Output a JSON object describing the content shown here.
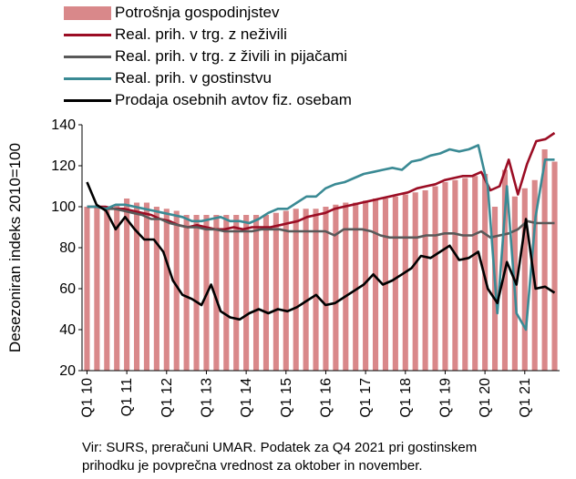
{
  "chart_data": {
    "type": "bar",
    "ylabel": "Desezoniran indeks 2010=100",
    "ylim": [
      20,
      140
    ],
    "yticks": [
      20,
      40,
      60,
      80,
      100,
      120,
      140
    ],
    "xticks": [
      "Q1 10",
      "Q1 11",
      "Q1 12",
      "Q1 13",
      "Q1 14",
      "Q1 15",
      "Q1 16",
      "Q1 17",
      "Q1 18",
      "Q1 19",
      "Q1 20",
      "Q1 21"
    ],
    "legend_position": "top-left",
    "grid": false,
    "series": [
      {
        "name": "Potrošnja gospodinjstev",
        "kind": "bar",
        "color": "#d9888a",
        "values": [
          100,
          100,
          100,
          101,
          104,
          102,
          102,
          100,
          99,
          98,
          96,
          96,
          96,
          96,
          96,
          96,
          96,
          96,
          96,
          97,
          98,
          99,
          99,
          99,
          100,
          101,
          102,
          102,
          103,
          104,
          104,
          105,
          106,
          107,
          108,
          110,
          112,
          113,
          114,
          115,
          116,
          100,
          118,
          105,
          109,
          113,
          128,
          122
        ]
      },
      {
        "name": "Real. prih. v trg. z neživili",
        "kind": "line",
        "color": "#9b0d24",
        "values": [
          100,
          100,
          100,
          99,
          99,
          98,
          97,
          96,
          94,
          93,
          91,
          90,
          91,
          90,
          89,
          89,
          90,
          89,
          90,
          90,
          90,
          91,
          92,
          93,
          95,
          96,
          97,
          99,
          100,
          101,
          102,
          103,
          104,
          105,
          106,
          107,
          109,
          110,
          111,
          113,
          114,
          115,
          115,
          117,
          108,
          110,
          123,
          106,
          121,
          132,
          133,
          136
        ]
      },
      {
        "name": "Real. prih. v trg. z živili in pijačami",
        "kind": "line",
        "color": "#595959",
        "values": [
          100,
          100,
          99,
          99,
          98,
          97,
          96,
          94,
          94,
          92,
          91,
          90,
          90,
          89,
          89,
          88,
          88,
          88,
          88,
          89,
          89,
          89,
          88,
          88,
          88,
          88,
          88,
          86,
          89,
          89,
          89,
          88,
          86,
          85,
          85,
          85,
          85,
          86,
          86,
          87,
          87,
          86,
          86,
          88,
          85,
          86,
          87,
          89,
          93,
          92,
          92,
          92
        ]
      },
      {
        "name": "Real. prih. v gostinstvu",
        "kind": "line",
        "color": "#3a8a94",
        "values": [
          100,
          100,
          99,
          101,
          101,
          100,
          99,
          98,
          97,
          96,
          95,
          93,
          93,
          94,
          95,
          93,
          93,
          92,
          94,
          97,
          99,
          99,
          102,
          105,
          105,
          109,
          111,
          112,
          114,
          116,
          117,
          118,
          119,
          118,
          122,
          123,
          125,
          126,
          128,
          127,
          128,
          130,
          110,
          48,
          110,
          48,
          40,
          95,
          123,
          123
        ]
      },
      {
        "name": "Prodaja osebnih avtov fiz. osebam",
        "kind": "line",
        "color": "#000000",
        "values": [
          112,
          101,
          98,
          89,
          95,
          89,
          84,
          84,
          78,
          64,
          57,
          55,
          52,
          62,
          49,
          46,
          45,
          48,
          50,
          48,
          50,
          49,
          51,
          54,
          57,
          52,
          53,
          56,
          59,
          62,
          67,
          62,
          64,
          67,
          70,
          76,
          75,
          78,
          81,
          74,
          75,
          78,
          60,
          53,
          73,
          62,
          94,
          60,
          61,
          58
        ]
      }
    ]
  },
  "source_lines": [
    "Vir: SURS, preračuni UMAR. Podatek za Q4 2021 pri gostinskem",
    "prihodku je povprečna vrednost za oktober in november."
  ]
}
